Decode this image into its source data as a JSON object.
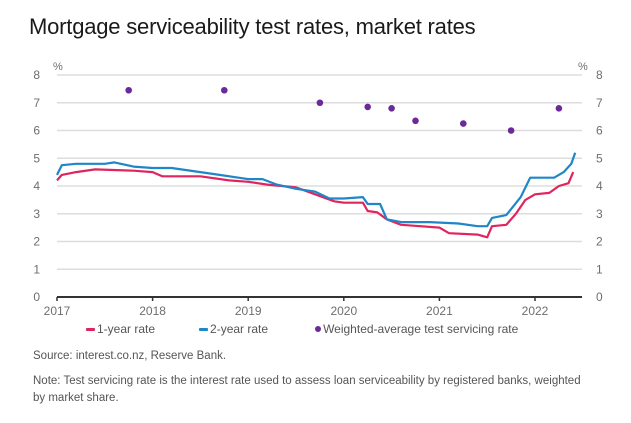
{
  "chart_data": {
    "type": "line",
    "title": "Mortgage serviceability test rates, market rates",
    "xlabel": "",
    "ylabel": "%",
    "ylabel_right": "%",
    "ylim": [
      0,
      8
    ],
    "xlim": [
      2017,
      2022.5
    ],
    "y_ticks": [
      "0",
      "1",
      "2",
      "3",
      "4",
      "5",
      "6",
      "7",
      "8"
    ],
    "x_ticks": [
      "2017",
      "2018",
      "2019",
      "2020",
      "2021",
      "2022"
    ],
    "grid": true,
    "legend_position": "bottom",
    "colors": {
      "one_year": "#e0245e",
      "two_year": "#1f86c7",
      "weighted": "#6a2a9a",
      "grid": "#dddddd",
      "axis": "#333333"
    },
    "series": [
      {
        "name": "1-year rate",
        "kind": "line",
        "x": [
          2017.0,
          2017.05,
          2017.2,
          2017.4,
          2017.8,
          2018.0,
          2018.1,
          2018.5,
          2018.8,
          2019.0,
          2019.2,
          2019.5,
          2019.7,
          2019.9,
          2020.0,
          2020.2,
          2020.25,
          2020.35,
          2020.45,
          2020.6,
          2020.8,
          2021.0,
          2021.1,
          2021.4,
          2021.5,
          2021.55,
          2021.7,
          2021.8,
          2021.9,
          2022.0,
          2022.15,
          2022.25,
          2022.35,
          2022.4
        ],
        "y": [
          4.2,
          4.4,
          4.5,
          4.6,
          4.55,
          4.5,
          4.35,
          4.35,
          4.2,
          4.15,
          4.05,
          3.95,
          3.7,
          3.45,
          3.4,
          3.4,
          3.1,
          3.05,
          2.8,
          2.6,
          2.55,
          2.5,
          2.3,
          2.25,
          2.15,
          2.55,
          2.6,
          3.0,
          3.5,
          3.7,
          3.75,
          4.0,
          4.1,
          4.5
        ]
      },
      {
        "name": "2-year rate",
        "kind": "line",
        "x": [
          2017.0,
          2017.05,
          2017.2,
          2017.5,
          2017.6,
          2017.8,
          2018.0,
          2018.2,
          2018.5,
          2018.7,
          2018.9,
          2019.0,
          2019.15,
          2019.3,
          2019.5,
          2019.7,
          2019.85,
          2020.0,
          2020.2,
          2020.25,
          2020.38,
          2020.45,
          2020.6,
          2020.9,
          2021.2,
          2021.4,
          2021.5,
          2021.55,
          2021.7,
          2021.85,
          2021.95,
          2022.2,
          2022.3,
          2022.38,
          2022.42
        ],
        "y": [
          4.4,
          4.75,
          4.8,
          4.8,
          4.85,
          4.7,
          4.65,
          4.65,
          4.5,
          4.4,
          4.3,
          4.25,
          4.25,
          4.05,
          3.9,
          3.8,
          3.55,
          3.55,
          3.6,
          3.35,
          3.35,
          2.8,
          2.7,
          2.7,
          2.65,
          2.55,
          2.55,
          2.85,
          2.95,
          3.6,
          4.3,
          4.3,
          4.5,
          4.8,
          5.2
        ]
      },
      {
        "name": "Weighted-average test servicing rate",
        "kind": "scatter",
        "x": [
          2017.75,
          2018.75,
          2019.75,
          2020.25,
          2020.5,
          2020.75,
          2021.25,
          2021.75,
          2022.25
        ],
        "y": [
          7.45,
          7.45,
          7.0,
          6.85,
          6.8,
          6.35,
          6.25,
          6.0,
          6.8
        ]
      }
    ]
  },
  "legend": {
    "items": [
      {
        "label": "1-year rate"
      },
      {
        "label": "2-year rate"
      },
      {
        "label": "Weighted-average test servicing rate"
      }
    ]
  },
  "footer": {
    "source": "Source: interest.co.nz, Reserve Bank.",
    "note": "Note: Test servicing rate is the interest rate used to assess loan serviceability by registered banks, weighted by market share."
  }
}
